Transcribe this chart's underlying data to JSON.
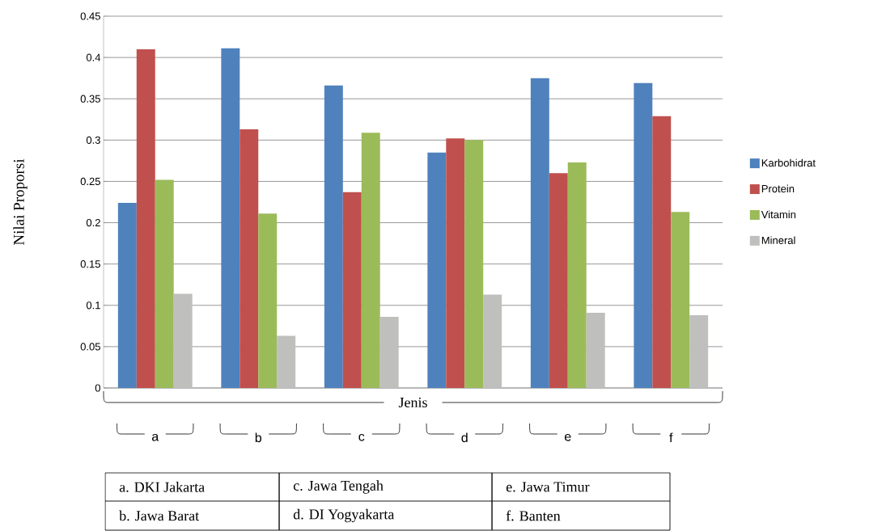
{
  "chart_data": {
    "type": "bar",
    "xlabel": "Jenis",
    "ylabel": "Nilai Proporsi",
    "categories": [
      "a",
      "b",
      "c",
      "d",
      "e",
      "f"
    ],
    "series": [
      {
        "name": "Karbohidrat",
        "color": "#4f81bd",
        "values": [
          0.224,
          0.411,
          0.366,
          0.285,
          0.375,
          0.369
        ]
      },
      {
        "name": "Protein",
        "color": "#c0504d",
        "values": [
          0.41,
          0.313,
          0.237,
          0.302,
          0.26,
          0.329
        ]
      },
      {
        "name": "Vitamin",
        "color": "#9bbb59",
        "values": [
          0.252,
          0.211,
          0.309,
          0.3,
          0.273,
          0.213
        ]
      },
      {
        "name": "Mineral",
        "color": "#bfbfbd",
        "values": [
          0.114,
          0.063,
          0.086,
          0.113,
          0.091,
          0.088
        ]
      }
    ],
    "ylim": [
      0,
      0.45
    ],
    "yticks": [
      0,
      0.05,
      0.1,
      0.15,
      0.2,
      0.25,
      0.3,
      0.35,
      0.4,
      0.45
    ],
    "grid": "y",
    "legend": "right",
    "annotations": [
      "a. DKI Jakarta",
      "b. Jawa Barat",
      "c. Jawa Tengah",
      "d. DI Yogyakarta",
      "e. Jawa Timur",
      "f. Banten"
    ]
  }
}
